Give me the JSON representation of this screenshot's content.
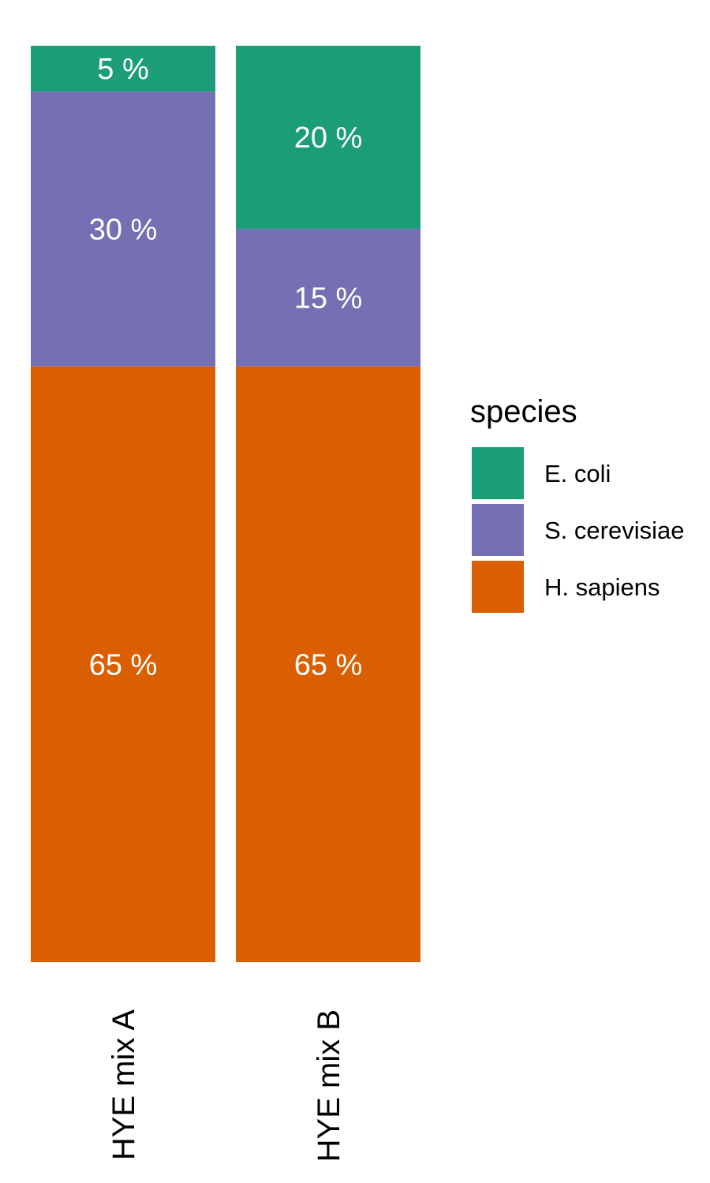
{
  "chart_data": {
    "type": "bar",
    "stacked": true,
    "categories": [
      "HYE mix A",
      "HYE mix B"
    ],
    "ylim": [
      0,
      100
    ],
    "grid": false,
    "legend": {
      "title": "species",
      "placement": "right"
    },
    "series": [
      {
        "name": "E. coli",
        "color": "#1b9e77",
        "values": [
          5,
          20
        ],
        "labels": [
          "5 %",
          "20 %"
        ]
      },
      {
        "name": "S. cerevisiae",
        "color": "#7570b3",
        "values": [
          30,
          15
        ],
        "labels": [
          "30 %",
          "15 %"
        ]
      },
      {
        "name": "H. sapiens",
        "color": "#d95f02",
        "values": [
          65,
          65
        ],
        "labels": [
          "65 %",
          "65 %"
        ]
      }
    ]
  }
}
